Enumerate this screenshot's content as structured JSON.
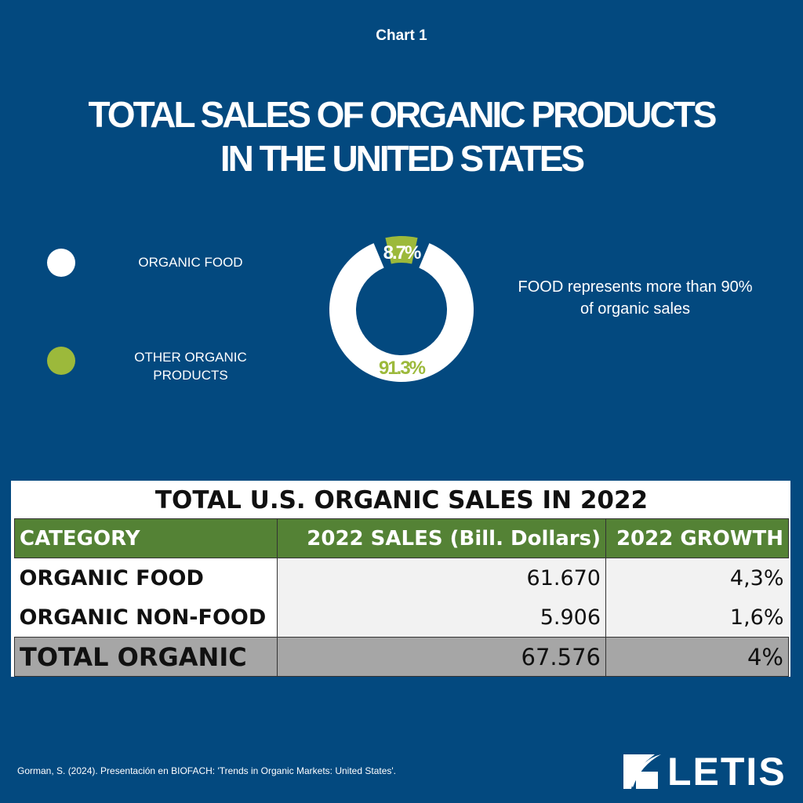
{
  "kicker": "Chart 1",
  "title_line1": "TOTAL SALES OF ORGANIC PRODUCTS",
  "title_line2": "IN THE UNITED STATES",
  "chart_data": {
    "type": "pie",
    "title": "TOTAL SALES OF ORGANIC PRODUCTS IN THE UNITED STATES",
    "categories": [
      "ORGANIC FOOD",
      "OTHER ORGANIC PRODUCTS"
    ],
    "values": [
      91.3,
      8.7
    ],
    "labels": [
      "91.3%",
      "8.7%"
    ],
    "colors": [
      "#ffffff",
      "#9cb93b"
    ],
    "legend": "left"
  },
  "legend": [
    {
      "label": "ORGANIC FOOD",
      "color": "#ffffff"
    },
    {
      "label": "OTHER ORGANIC PRODUCTS",
      "color": "#9cb93b"
    }
  ],
  "note": "FOOD represents more than 90% of organic sales",
  "table": {
    "title": "TOTAL U.S. ORGANIC SALES IN 2022",
    "headers": [
      "CATEGORY",
      "2022 SALES  (Bill. Dollars)",
      "2022 GROWTH"
    ],
    "rows": [
      [
        "ORGANIC FOOD",
        "61.670",
        "4,3%"
      ],
      [
        "ORGANIC NON-FOOD",
        "5.906",
        "1,6%"
      ]
    ],
    "total": [
      "TOTAL ORGANIC",
      "67.576",
      "4%"
    ]
  },
  "source": "Gorman, S. (2024). Presentación en BIOFACH: 'Trends in Organic Markets: United States'.",
  "logo": "LETIS"
}
